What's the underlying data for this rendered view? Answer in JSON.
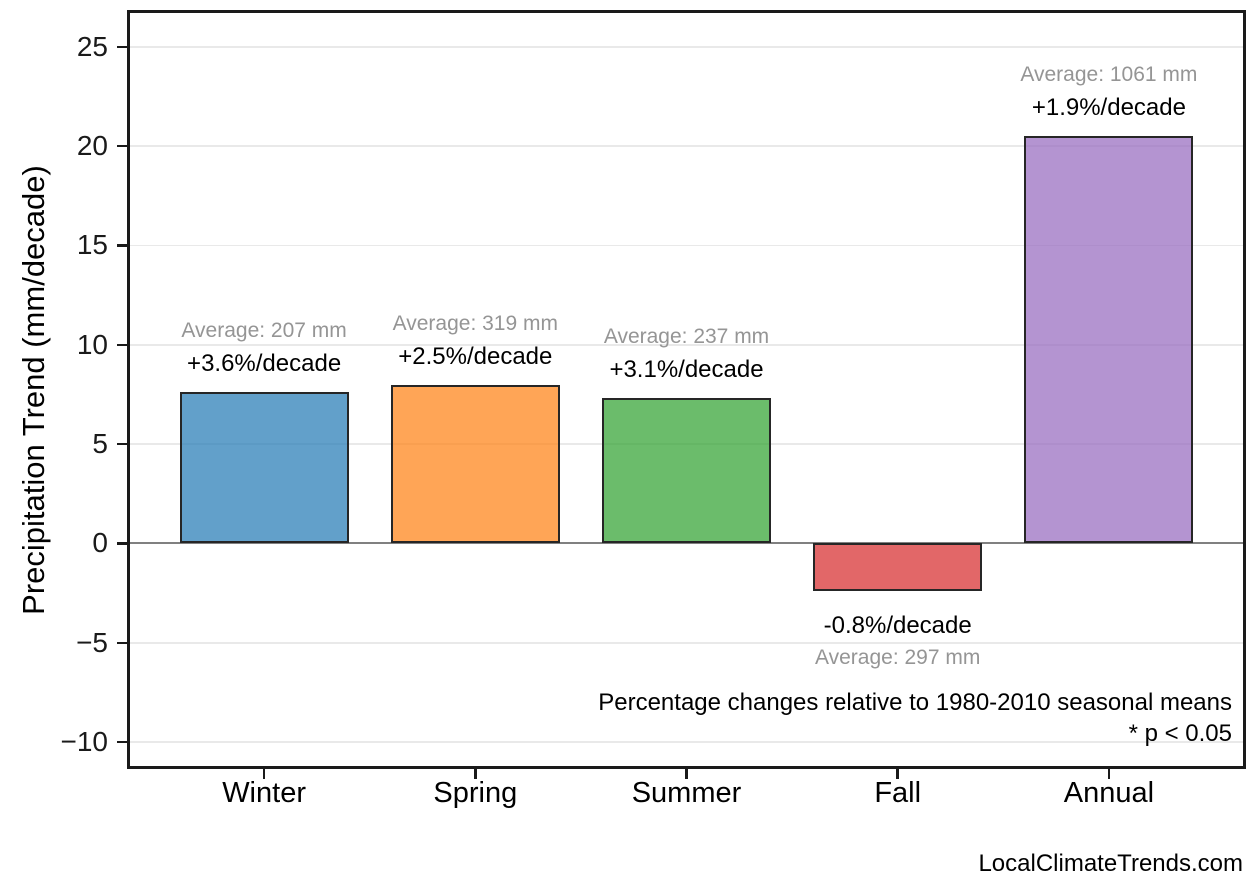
{
  "page": {
    "watermark": "LocalClimateTrends.com"
  },
  "chart_data": {
    "type": "bar",
    "title": "",
    "xlabel": "",
    "ylabel": "Precipitation Trend (mm/decade)",
    "categories": [
      "Winter",
      "Spring",
      "Summer",
      "Fall",
      "Annual"
    ],
    "values": [
      7.6,
      8.0,
      7.3,
      -2.4,
      20.5
    ],
    "bars": [
      {
        "category": "Winter",
        "trend_mm_per_decade": 7.6,
        "pct_per_decade": 3.6,
        "avg_mm": 207,
        "pct_label": "+3.6%/decade",
        "avg_label": "Average: 207 mm",
        "color": "#1f77b4"
      },
      {
        "category": "Spring",
        "trend_mm_per_decade": 8.0,
        "pct_per_decade": 2.5,
        "avg_mm": 319,
        "pct_label": "+2.5%/decade",
        "avg_label": "Average: 319 mm",
        "color": "#ff7f0e"
      },
      {
        "category": "Summer",
        "trend_mm_per_decade": 7.3,
        "pct_per_decade": 3.1,
        "avg_mm": 237,
        "pct_label": "+3.1%/decade",
        "avg_label": "Average: 237 mm",
        "color": "#2ca02c"
      },
      {
        "category": "Fall",
        "trend_mm_per_decade": -2.4,
        "pct_per_decade": -0.8,
        "avg_mm": 297,
        "pct_label": "-0.8%/decade",
        "avg_label": "Average: 297 mm",
        "color": "#d62728"
      },
      {
        "category": "Annual",
        "trend_mm_per_decade": 20.5,
        "pct_per_decade": 1.9,
        "avg_mm": 1061,
        "pct_label": "+1.9%/decade",
        "avg_label": "Average: 1061 mm",
        "color": "#9467bd"
      }
    ],
    "bar_alpha": 0.7,
    "bar_edge_color": "#262626",
    "ylim": [
      -11.2,
      26.7
    ],
    "yticks": [
      -10,
      -5,
      0,
      5,
      10,
      15,
      20,
      25
    ],
    "ytick_labels": [
      "−10",
      "−5",
      "0",
      "5",
      "10",
      "15",
      "20",
      "25"
    ],
    "grid": true,
    "grid_color": "#e9e9e9",
    "zero_line_color": "#808080",
    "legend": "none",
    "notes": {
      "line1": "Percentage changes relative to 1980-2010 seasonal means",
      "line2": "* p < 0.05"
    }
  }
}
